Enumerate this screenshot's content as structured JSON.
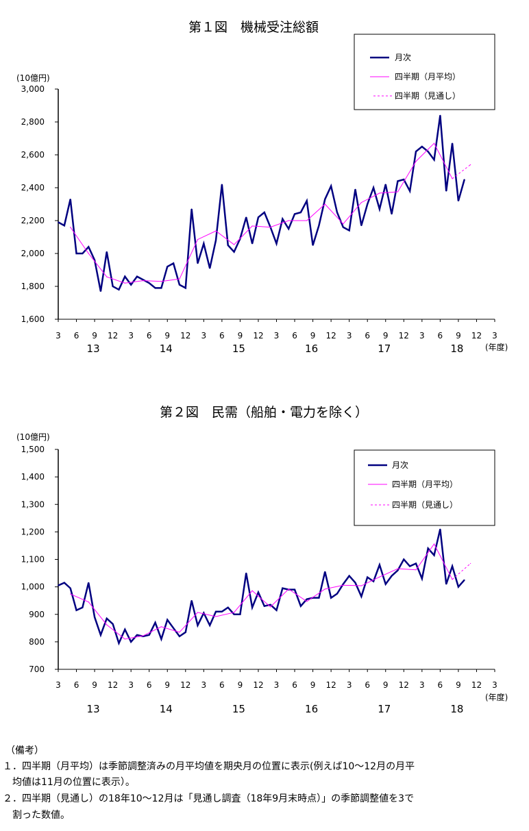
{
  "chart_data": [
    {
      "type": "line",
      "title": "第１図　機械受注総額",
      "ylabel": "(10億円)",
      "xlabel": "(年度)",
      "ylim": [
        1600,
        3000
      ],
      "yticks": [
        1600,
        1800,
        2000,
        2200,
        2400,
        2600,
        2800,
        3000
      ],
      "ytick_labels": [
        "1,600",
        "1,800",
        "2,000",
        "2,200",
        "2,400",
        "2,600",
        "2,800",
        "3,000"
      ],
      "xtick_labels": [
        "3",
        "6",
        "9",
        "12",
        "3",
        "6",
        "9",
        "12",
        "3",
        "6",
        "9",
        "12",
        "3",
        "6",
        "9",
        "12",
        "3",
        "6",
        "9",
        "12",
        "3",
        "6",
        "9",
        "12",
        "3"
      ],
      "year_labels": [
        "13",
        "14",
        "15",
        "16",
        "17",
        "18"
      ],
      "legend": {
        "placement": "top-right",
        "entries": [
          "月次",
          "四半期（月平均）",
          "四半期（見通し）"
        ]
      },
      "colors": {
        "monthly": "#000080",
        "quarterly": "#ff00ff",
        "forecast": "#ff00ff"
      },
      "series": [
        {
          "name": "月次",
          "x": "month_index_from_first_point",
          "values": [
            2190,
            2170,
            2330,
            2000,
            2000,
            2040,
            1960,
            1770,
            2010,
            1800,
            1780,
            1860,
            1810,
            1860,
            1840,
            1820,
            1790,
            1790,
            1920,
            1940,
            1810,
            1790,
            2270,
            1940,
            2060,
            1910,
            2080,
            2420,
            2050,
            2010,
            2090,
            2220,
            2060,
            2220,
            2250,
            2160,
            2060,
            2210,
            2150,
            2240,
            2250,
            2320,
            2050,
            2170,
            2330,
            2410,
            2250,
            2160,
            2140,
            2390,
            2170,
            2300,
            2400,
            2270,
            2420,
            2240,
            2440,
            2450,
            2380,
            2620,
            2650,
            2620,
            2570,
            2840,
            2380,
            2670,
            2320,
            2450
          ]
        },
        {
          "name": "四半期（月平均）",
          "x": [
            2,
            5,
            8,
            11,
            14,
            17,
            20,
            23,
            26,
            29,
            32,
            35,
            38,
            41,
            44,
            47,
            50,
            53,
            56,
            59,
            62,
            65
          ],
          "values": [
            2160,
            2000,
            1858,
            1820,
            1835,
            1830,
            1845,
            2085,
            2137,
            2054,
            2167,
            2160,
            2200,
            2200,
            2300,
            2180,
            2310,
            2367,
            2375,
            2560,
            2670,
            2455
          ]
        },
        {
          "name": "四半期（見通し）",
          "x": [
            65,
            68
          ],
          "values": [
            2455,
            2540
          ]
        }
      ]
    },
    {
      "type": "line",
      "title": "第２図　民需（船舶・電力を除く）",
      "ylabel": "(10億円)",
      "xlabel": "(年度)",
      "ylim": [
        700,
        1500
      ],
      "yticks": [
        700,
        800,
        900,
        1000,
        1100,
        1200,
        1300,
        1400,
        1500
      ],
      "ytick_labels": [
        "700",
        "800",
        "900",
        "1,000",
        "1,100",
        "1,200",
        "1,300",
        "1,400",
        "1,500"
      ],
      "xtick_labels": [
        "3",
        "6",
        "9",
        "12",
        "3",
        "6",
        "9",
        "12",
        "3",
        "6",
        "9",
        "12",
        "3",
        "6",
        "9",
        "12",
        "3",
        "6",
        "9",
        "12",
        "3",
        "6",
        "9",
        "12",
        "3"
      ],
      "year_labels": [
        "13",
        "14",
        "15",
        "16",
        "17",
        "18"
      ],
      "legend": {
        "placement": "top-right",
        "entries": [
          "月次",
          "四半期（月平均）",
          "四半期（見通し）"
        ]
      },
      "colors": {
        "monthly": "#000080",
        "quarterly": "#ff00ff",
        "forecast": "#ff00ff"
      },
      "series": [
        {
          "name": "月次",
          "x": "month_index_from_first_point",
          "values": [
            1005,
            1015,
            995,
            915,
            925,
            1015,
            890,
            825,
            885,
            865,
            795,
            845,
            800,
            825,
            820,
            825,
            870,
            810,
            880,
            850,
            820,
            835,
            950,
            860,
            905,
            860,
            910,
            910,
            925,
            900,
            900,
            1050,
            925,
            980,
            930,
            935,
            915,
            995,
            990,
            990,
            930,
            955,
            960,
            960,
            1055,
            960,
            975,
            1010,
            1040,
            1015,
            965,
            1035,
            1020,
            1080,
            1010,
            1040,
            1060,
            1100,
            1075,
            1085,
            1030,
            1140,
            1115,
            1210,
            1010,
            1075,
            1000,
            1025
          ]
        },
        {
          "name": "四半期（月平均）",
          "x": [
            2,
            5,
            8,
            11,
            14,
            17,
            20,
            23,
            26,
            29,
            32,
            35,
            38,
            41,
            44,
            47,
            50,
            53,
            56,
            59,
            62,
            65
          ],
          "values": [
            974,
            945,
            862,
            810,
            822,
            855,
            835,
            907,
            892,
            907,
            986,
            927,
            992,
            947,
            992,
            1006,
            1004,
            1036,
            1066,
            1062,
            1156,
            1027
          ]
        },
        {
          "name": "四半期（見通し）",
          "x": [
            65,
            68
          ],
          "values": [
            1027,
            1085
          ]
        }
      ]
    }
  ],
  "notes": {
    "heading": "（備考）",
    "lines": [
      "１．四半期（月平均）は季節調整済みの月平均値を期央月の位置に表示(例えば10～12月の月平",
      "　均値は11月の位置に表示）。",
      "２．四半期（見通し）の18年10～12月は「見通し調査（18年9月末時点）」の季節調整値を3で",
      "　割った数値。"
    ]
  }
}
